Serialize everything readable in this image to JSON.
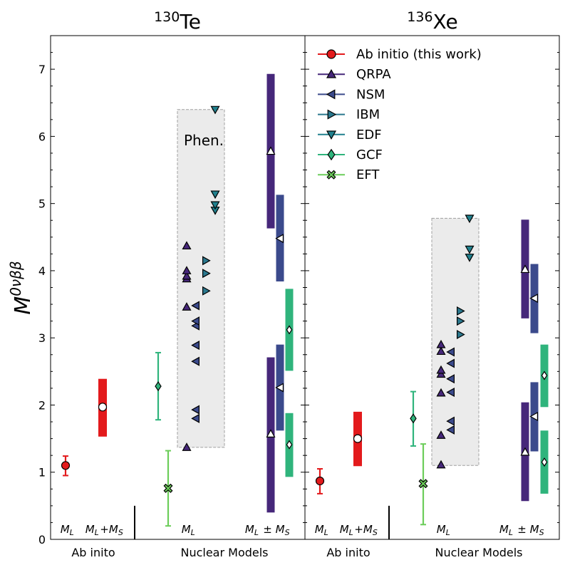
{
  "chart_data": {
    "type": "scatter",
    "ylabel": "M0νββ",
    "ylim": [
      0,
      7.5
    ],
    "yticks": [
      0,
      1,
      2,
      3,
      4,
      5,
      6,
      7
    ],
    "legend": {
      "placement": "top-right",
      "entries": [
        {
          "name": "Ab initio (this work)",
          "marker": "circle",
          "color": "#e31a1c"
        },
        {
          "name": "QRPA",
          "marker": "triangle-up",
          "color": "#46277a"
        },
        {
          "name": "NSM",
          "marker": "triangle-left",
          "color": "#3b4a8c"
        },
        {
          "name": "IBM",
          "marker": "triangle-right",
          "color": "#2a788e"
        },
        {
          "name": "EDF",
          "marker": "triangle-down",
          "color": "#21808d"
        },
        {
          "name": "GCF",
          "marker": "diamond",
          "color": "#2fb47c"
        },
        {
          "name": "EFT",
          "marker": "x",
          "color": "#6ccd5a"
        }
      ]
    },
    "phen_label": "Phen.",
    "panels": [
      {
        "title_sup": "130",
        "title_main": "Te",
        "group_labels": [
          "Ab inito",
          "Nuclear Models"
        ],
        "region_labels": {
          "ml": "M_L",
          "mlms": "M_L+M_S",
          "nm_ml": "M_L",
          "nm_pm": "M_L ± M_S"
        },
        "ab_initio": {
          "ML": {
            "value": 1.1,
            "err_low": 0.95,
            "err_high": 1.24
          },
          "MLMS": {
            "value": 1.97,
            "band_low": 1.53,
            "band_high": 2.39
          }
        },
        "gcf_ml": {
          "value": 2.28,
          "err_low": 1.78,
          "err_high": 2.78
        },
        "eft_ml": {
          "value": 0.76,
          "err_low": 0.2,
          "err_high": 1.32
        },
        "phen_band": [
          1.37,
          6.4
        ],
        "qrpa": [
          1.37,
          3.46,
          3.88,
          3.92,
          4.0,
          4.37
        ],
        "nsm": [
          1.8,
          1.93,
          2.65,
          2.89,
          3.18,
          3.25,
          3.48
        ],
        "ibm": [
          3.7,
          3.96,
          4.15
        ],
        "edf": [
          4.9,
          4.98,
          5.14,
          6.4
        ],
        "pm_bands": [
          {
            "model": "QRPA",
            "low": 4.63,
            "high": 6.93,
            "central": 5.78
          },
          {
            "model": "QRPA",
            "low": 0.4,
            "high": 2.71,
            "central": 1.57
          },
          {
            "model": "NSM",
            "low": 3.84,
            "high": 5.13,
            "central": 4.48
          },
          {
            "model": "NSM",
            "low": 1.62,
            "high": 2.9,
            "central": 2.26
          },
          {
            "model": "GCF",
            "low": 2.51,
            "high": 3.73,
            "central": 3.12
          },
          {
            "model": "GCF",
            "low": 0.93,
            "high": 1.88,
            "central": 1.41
          }
        ]
      },
      {
        "title_sup": "136",
        "title_main": "Xe",
        "group_labels": [
          "Ab inito",
          "Nuclear Models"
        ],
        "region_labels": {
          "ml": "M_L",
          "mlms": "M_L+M_S",
          "nm_ml": "M_L",
          "nm_pm": "M_L ± M_S"
        },
        "ab_initio": {
          "ML": {
            "value": 0.87,
            "err_low": 0.68,
            "err_high": 1.05
          },
          "MLMS": {
            "value": 1.5,
            "band_low": 1.09,
            "band_high": 1.9
          }
        },
        "gcf_ml": {
          "value": 1.8,
          "err_low": 1.39,
          "err_high": 2.2
        },
        "eft_ml": {
          "value": 0.83,
          "err_low": 0.22,
          "err_high": 1.42
        },
        "phen_band": [
          1.1,
          4.78
        ],
        "qrpa": [
          1.11,
          1.55,
          2.18,
          2.46,
          2.52,
          2.8,
          2.9
        ],
        "nsm": [
          1.63,
          1.76,
          2.19,
          2.39,
          2.62,
          2.79
        ],
        "ibm": [
          3.05,
          3.25,
          3.4
        ],
        "edf": [
          4.2,
          4.32,
          4.78
        ],
        "pm_bands": [
          {
            "model": "QRPA",
            "low": 3.29,
            "high": 4.76,
            "central": 4.02
          },
          {
            "model": "QRPA",
            "low": 0.57,
            "high": 2.04,
            "central": 1.3
          },
          {
            "model": "NSM",
            "low": 3.07,
            "high": 4.1,
            "central": 3.59
          },
          {
            "model": "NSM",
            "low": 1.31,
            "high": 2.34,
            "central": 1.83
          },
          {
            "model": "GCF",
            "low": 1.97,
            "high": 2.9,
            "central": 2.44
          },
          {
            "model": "GCF",
            "low": 0.68,
            "high": 1.62,
            "central": 1.15
          }
        ]
      }
    ]
  }
}
